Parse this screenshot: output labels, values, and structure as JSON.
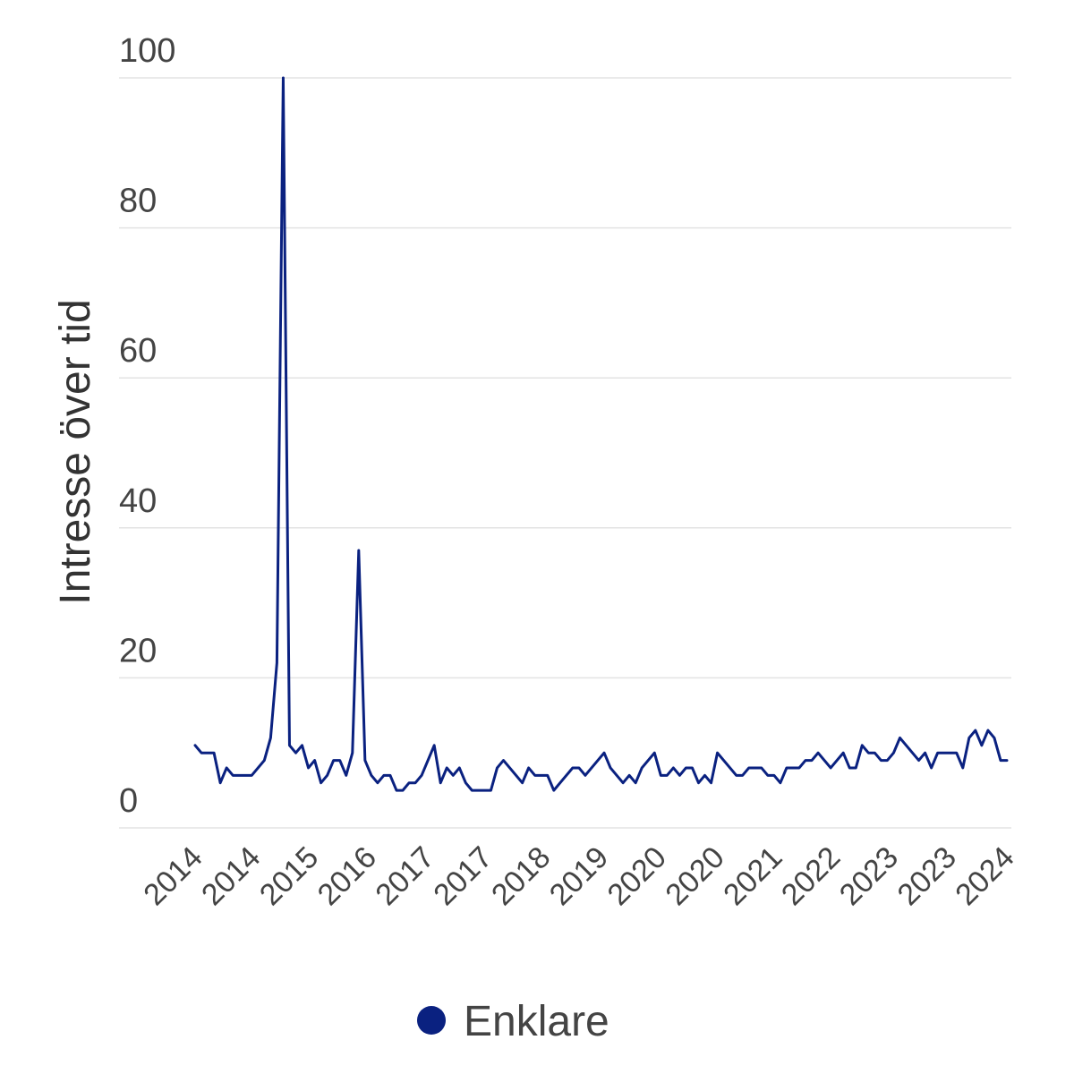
{
  "chart_data": {
    "type": "line",
    "ylabel": "Intresse över tid",
    "xlabel": "",
    "ylim": [
      0,
      100
    ],
    "y_ticks": [
      "0",
      "20",
      "40",
      "60",
      "80",
      "100"
    ],
    "x_tick_labels": [
      "2014",
      "2014",
      "2015",
      "2016",
      "2017",
      "2017",
      "2018",
      "2019",
      "2020",
      "2020",
      "2021",
      "2022",
      "2023",
      "2023",
      "2024"
    ],
    "grid": true,
    "legend_position": "bottom",
    "series": [
      {
        "name": "Enklare",
        "color": "#0a2180",
        "values": [
          11,
          10,
          10,
          10,
          6,
          8,
          7,
          7,
          7,
          7,
          8,
          9,
          12,
          22,
          100,
          11,
          10,
          11,
          8,
          9,
          6,
          7,
          9,
          9,
          7,
          10,
          37,
          9,
          7,
          6,
          7,
          7,
          5,
          5,
          6,
          6,
          7,
          9,
          11,
          6,
          8,
          7,
          8,
          6,
          5,
          5,
          5,
          5,
          8,
          9,
          8,
          7,
          6,
          8,
          7,
          7,
          7,
          5,
          6,
          7,
          8,
          8,
          7,
          8,
          9,
          10,
          8,
          7,
          6,
          7,
          6,
          8,
          9,
          10,
          7,
          7,
          8,
          7,
          8,
          8,
          6,
          7,
          6,
          10,
          9,
          8,
          7,
          7,
          8,
          8,
          8,
          7,
          7,
          6,
          8,
          8,
          8,
          9,
          9,
          10,
          9,
          8,
          9,
          10,
          8,
          8,
          11,
          10,
          10,
          9,
          9,
          10,
          12,
          11,
          10,
          9,
          10,
          8,
          10,
          10,
          10,
          10,
          8,
          12,
          13,
          11,
          13,
          12,
          9,
          9
        ]
      }
    ]
  }
}
